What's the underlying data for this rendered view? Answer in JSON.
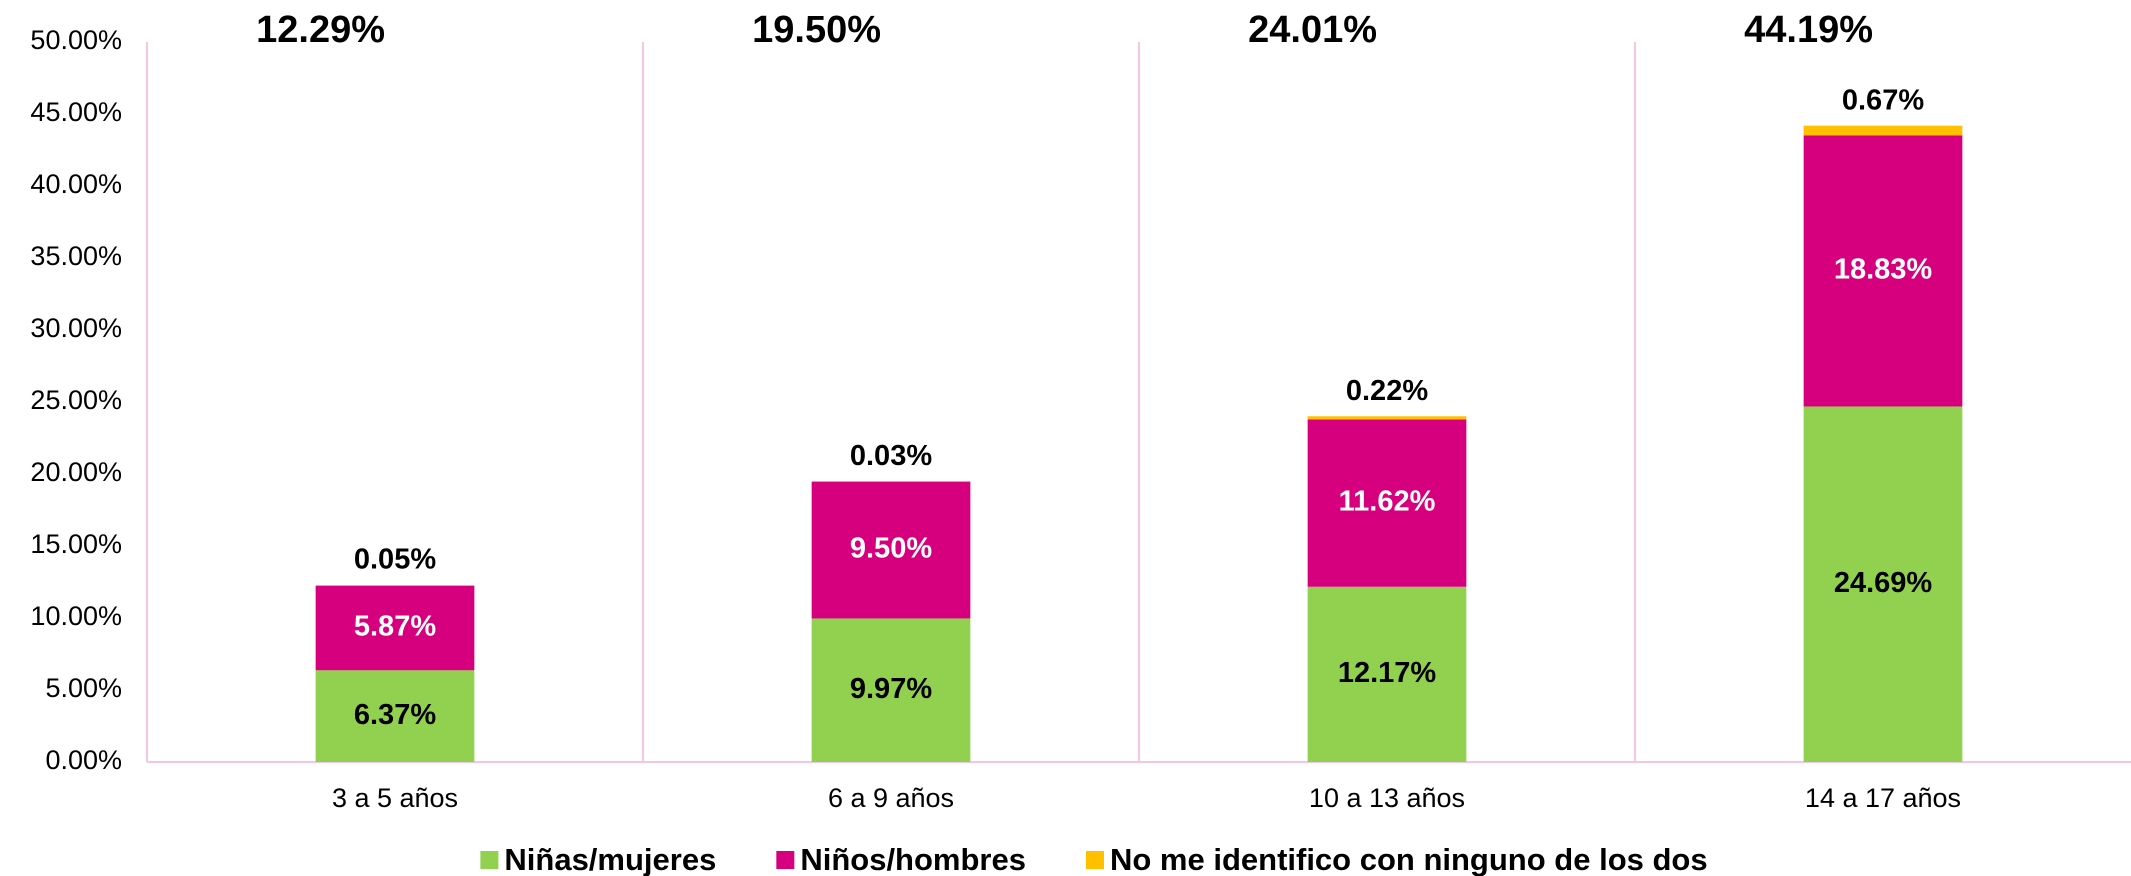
{
  "chart_data": {
    "type": "stacked_bar",
    "categories": [
      "3 a 5 años",
      "6 a 9 años",
      "10 a 13 años",
      "14 a 17 años"
    ],
    "series": [
      {
        "name": "Niñas/mujeres",
        "color": "#92d050",
        "label_color": "#000000",
        "values": [
          6.37,
          9.97,
          12.17,
          24.69
        ],
        "value_labels": [
          "6.37%",
          "9.97%",
          "12.17%",
          "24.69%"
        ]
      },
      {
        "name": "Niños/hombres",
        "color": "#d6007f",
        "label_color": "#ffffff",
        "values": [
          5.87,
          9.5,
          11.62,
          18.83
        ],
        "value_labels": [
          "5.87%",
          "9.50%",
          "11.62%",
          "18.83%"
        ]
      },
      {
        "name": "No me identifico con ninguno de los dos",
        "color": "#ffc000",
        "label_color": "#000000",
        "values": [
          0.05,
          0.03,
          0.22,
          0.67
        ],
        "value_labels": [
          "0.05%",
          "0.03%",
          "0.22%",
          "0.67%"
        ]
      }
    ],
    "totals": [
      12.29,
      19.5,
      24.01,
      44.19
    ],
    "total_labels": [
      "12.29%",
      "19.50%",
      "24.01%",
      "44.19%"
    ],
    "ylim": [
      0,
      50
    ],
    "yticks": [
      {
        "value": 0,
        "label": "0.00%"
      },
      {
        "value": 5,
        "label": "5.00%"
      },
      {
        "value": 10,
        "label": "10.00%"
      },
      {
        "value": 15,
        "label": "15.00%"
      },
      {
        "value": 20,
        "label": "20.00%"
      },
      {
        "value": 25,
        "label": "25.00%"
      },
      {
        "value": 30,
        "label": "30.00%"
      },
      {
        "value": 35,
        "label": "35.00%"
      },
      {
        "value": 40,
        "label": "40.00%"
      },
      {
        "value": 45,
        "label": "45.00%"
      },
      {
        "value": 50,
        "label": "50.00%"
      }
    ],
    "legend": "bottom"
  }
}
